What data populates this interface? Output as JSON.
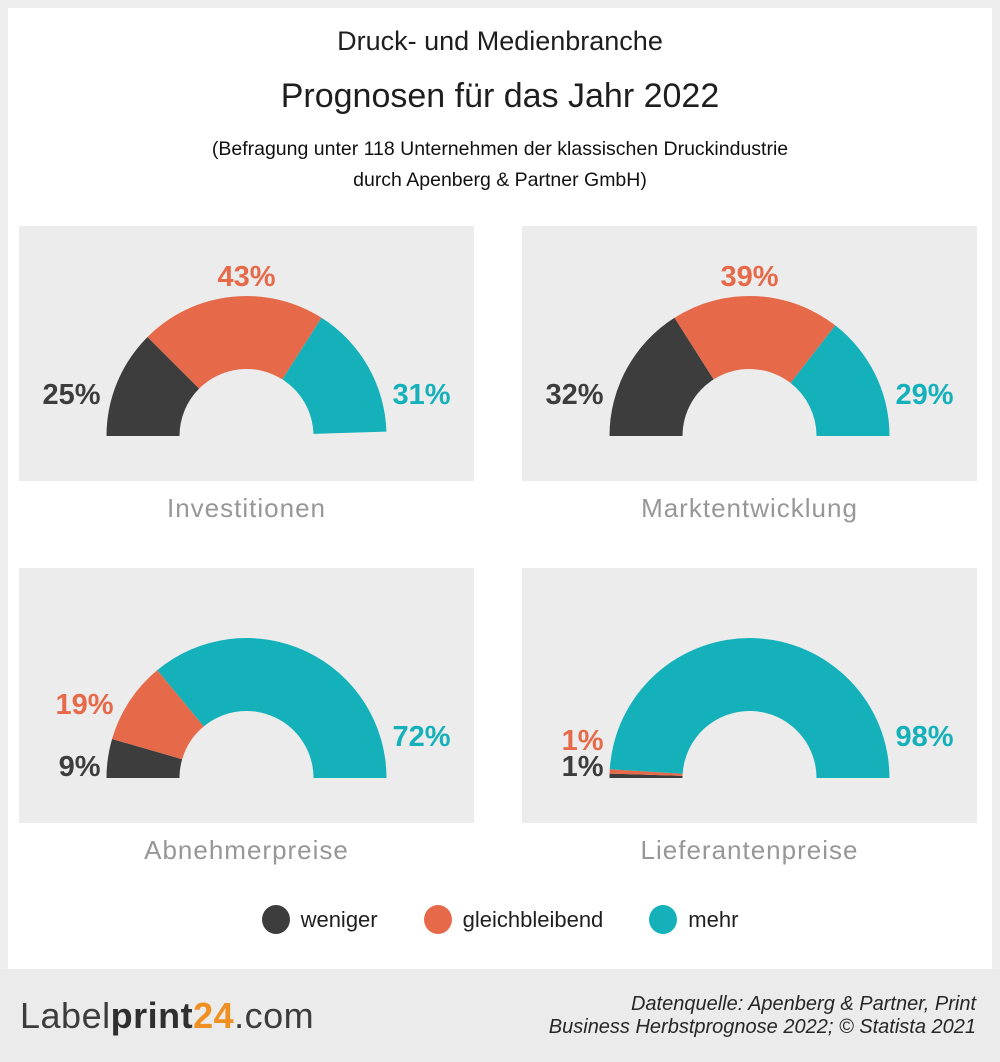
{
  "header": {
    "suptitle": "Druck- und Medienbranche",
    "title": "Prognosen für das Jahr 2022",
    "subtitle_line1": "(Befragung unter 118 Unternehmen der klassischen Druckindustrie",
    "subtitle_line2": "durch Apenberg & Partner GmbH)"
  },
  "chart_data": {
    "type": "pie",
    "variant": "half-donut-gauge",
    "unit": "%",
    "legend_position": "bottom-center",
    "legend": [
      {
        "label": "weniger",
        "color": "#3d3d3d"
      },
      {
        "label": "gleichbleibend",
        "color": "#e66a4a"
      },
      {
        "label": "mehr",
        "color": "#14b1bb"
      }
    ],
    "charts": [
      {
        "title": "Investitionen",
        "segments": [
          {
            "label": "weniger",
            "value": 25
          },
          {
            "label": "gleichbleibend",
            "value": 43
          },
          {
            "label": "mehr",
            "value": 31
          }
        ]
      },
      {
        "title": "Marktentwicklung",
        "segments": [
          {
            "label": "weniger",
            "value": 32
          },
          {
            "label": "gleichbleibend",
            "value": 39
          },
          {
            "label": "mehr",
            "value": 29
          }
        ]
      },
      {
        "title": "Abnehmerpreise",
        "segments": [
          {
            "label": "weniger",
            "value": 9
          },
          {
            "label": "gleichbleibend",
            "value": 19
          },
          {
            "label": "mehr",
            "value": 72
          }
        ]
      },
      {
        "title": "Lieferantenpreise",
        "segments": [
          {
            "label": "weniger",
            "value": 1
          },
          {
            "label": "gleichbleibend",
            "value": 1
          },
          {
            "label": "mehr",
            "value": 98
          }
        ]
      }
    ]
  },
  "footer": {
    "logo": {
      "part_light": "Label",
      "part_bold": "print",
      "part_number": "24",
      "part_tld": ".com",
      "accent_color": "#ef9122"
    },
    "source_line1": "Datenquelle: Apenberg & Partner, Print",
    "source_line2": "Business Herbstprognose 2022; © Statista 2021"
  },
  "colors": {
    "weniger": "#3d3d3d",
    "gleichbleibend": "#e66a4a",
    "mehr": "#14b1bb",
    "panel_bg": "#ececec",
    "page_frame": "#eeeeee",
    "footer_bg": "#ebebeb",
    "caption_text": "#979797",
    "logo_accent": "#ef9122"
  }
}
